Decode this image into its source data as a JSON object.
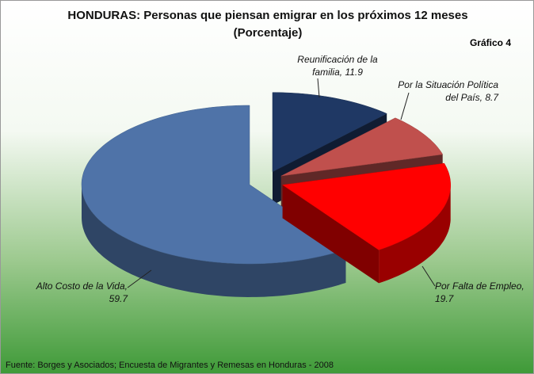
{
  "chart_data": {
    "type": "pie3d",
    "title": "HONDURAS: Personas que piensan emigrar en los próximos 12 meses",
    "subtitle": "(Porcentaje)",
    "annotation": "Gráfico  4",
    "source": "Fuente: Borges y Asociados; Encuesta de Migrantes y Remesas en Honduras - 2008",
    "categories": [
      "Reunificación de la familia",
      "Por la Situación Política del País",
      "Por Falta de Empleo",
      "Alto Costo de la Vida"
    ],
    "values": [
      11.9,
      8.7,
      19.7,
      59.7
    ],
    "colors": [
      "#1f3864",
      "#c0504d",
      "#ff0000",
      "#4f73a8"
    ]
  }
}
